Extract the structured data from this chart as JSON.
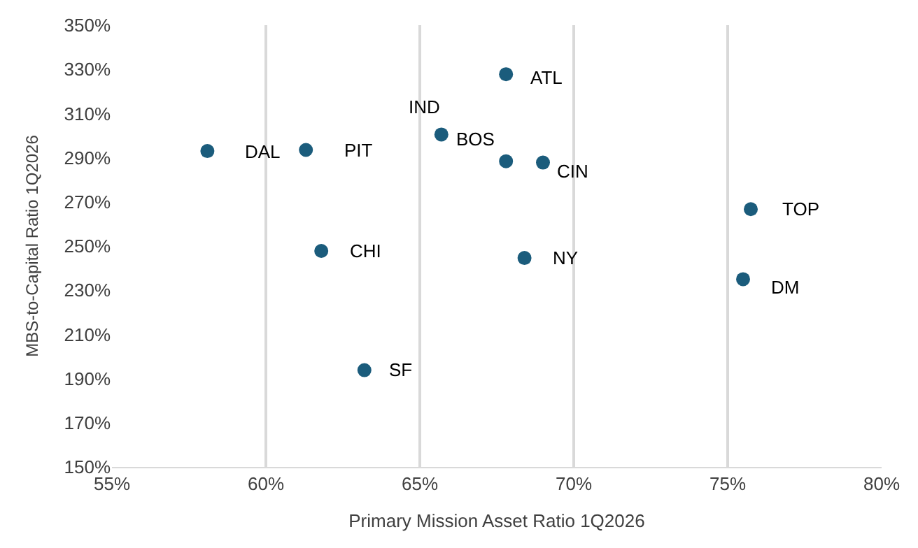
{
  "chart_data": {
    "type": "scatter",
    "xlabel": "Primary Mission Asset Ratio 1Q2026",
    "ylabel": "MBS-to-Capital Ratio 1Q2026",
    "x": [
      58.1,
      61.3,
      65.7,
      67.8,
      67.8,
      69.0,
      61.8,
      68.4,
      63.2,
      75.75,
      75.5
    ],
    "series": [
      {
        "color": "#1b5c7c",
        "values": [
          293,
          293.5,
          300.5,
          327.8,
          288.4,
          287.8,
          247.8,
          244.6,
          193.8,
          266.7,
          235
        ]
      }
    ],
    "annotations": [
      {
        "text": "DAL",
        "x": 58.1,
        "y": 293
      },
      {
        "text": "PIT",
        "x": 61.3,
        "y": 293.5
      },
      {
        "text": "IND",
        "x": 65.7,
        "y": 300.5
      },
      {
        "text": "ATL",
        "x": 67.8,
        "y": 327.8
      },
      {
        "text": "BOS",
        "x": 67.8,
        "y": 288.4
      },
      {
        "text": "CIN",
        "x": 69.0,
        "y": 287.8
      },
      {
        "text": "CHI",
        "x": 61.8,
        "y": 247.8
      },
      {
        "text": "NY",
        "x": 68.4,
        "y": 244.6
      },
      {
        "text": "SF",
        "x": 63.2,
        "y": 193.8
      },
      {
        "text": "TOP",
        "x": 75.75,
        "y": 266.7
      },
      {
        "text": "DM",
        "x": 75.5,
        "y": 235
      }
    ],
    "xlim": [
      55,
      80
    ],
    "xticks": [
      {
        "value": 55,
        "label": "55%"
      },
      {
        "value": 60,
        "label": "60%"
      },
      {
        "value": 65,
        "label": "65%"
      },
      {
        "value": 70,
        "label": "70%"
      },
      {
        "value": 75,
        "label": "75%"
      },
      {
        "value": 80,
        "label": "80%"
      }
    ],
    "ylim": [
      150,
      350
    ],
    "yticks": [
      {
        "value": 150,
        "label": "150%"
      },
      {
        "value": 170,
        "label": "170%"
      },
      {
        "value": 190,
        "label": "190%"
      },
      {
        "value": 210,
        "label": "210%"
      },
      {
        "value": 230,
        "label": "230%"
      },
      {
        "value": 250,
        "label": "250%"
      },
      {
        "value": 270,
        "label": "270%"
      },
      {
        "value": 290,
        "label": "290%"
      },
      {
        "value": 310,
        "label": "310%"
      },
      {
        "value": 330,
        "label": "330%"
      },
      {
        "value": 350,
        "label": "350%"
      }
    ],
    "grid": "x",
    "marker": "circle"
  }
}
